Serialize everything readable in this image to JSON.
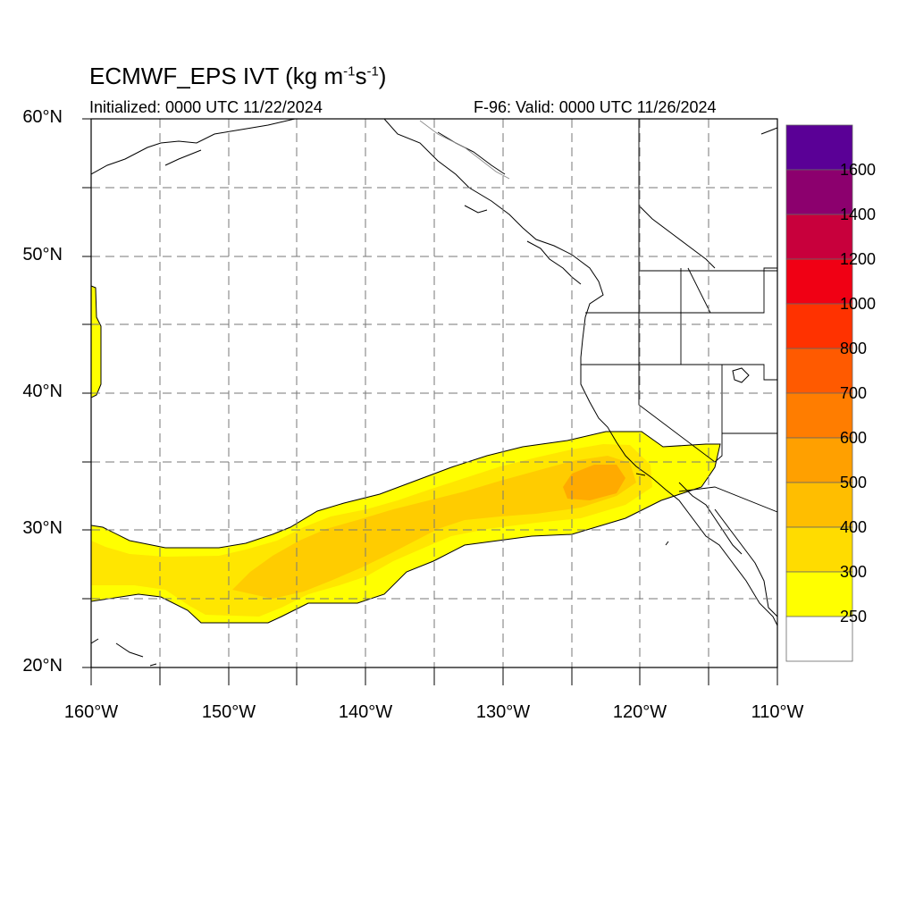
{
  "title": {
    "prefix": "ECMWF_EPS IVT (kg m",
    "exp1": "-1",
    "mid": "s",
    "exp2": "-1",
    "suffix": ")"
  },
  "subtitle_left": "Initialized: 0000 UTC 11/22/2024",
  "subtitle_right": "F-96: Valid: 0000 UTC 11/26/2024",
  "map": {
    "lon_range": [
      -160,
      -110
    ],
    "lat_range": [
      20,
      60
    ],
    "gridlines": "dashed every 5 degrees",
    "lat_labels": [
      "60°N",
      "50°N",
      "40°N",
      "30°N",
      "20°N"
    ],
    "lon_labels": [
      "160°W",
      "150°W",
      "140°W",
      "130°W",
      "120°W",
      "110°W"
    ],
    "ivt_bands": [
      {
        "level": 250,
        "color": "#ffff00"
      },
      {
        "level": 300,
        "color": "#ffe600"
      },
      {
        "level": 400,
        "color": "#ffcc00"
      },
      {
        "level": 500,
        "color": "#ffaa00"
      }
    ]
  },
  "colorbar": {
    "labels": [
      "1600",
      "1400",
      "1200",
      "1000",
      "800",
      "700",
      "600",
      "500",
      "400",
      "300",
      "250"
    ],
    "colors": [
      "#5a0096",
      "#8c006e",
      "#c8003c",
      "#f00014",
      "#ff3200",
      "#ff5a00",
      "#ff7d00",
      "#ffa000",
      "#ffbe00",
      "#ffdc00",
      "#ffff00",
      "#ffffff"
    ]
  }
}
